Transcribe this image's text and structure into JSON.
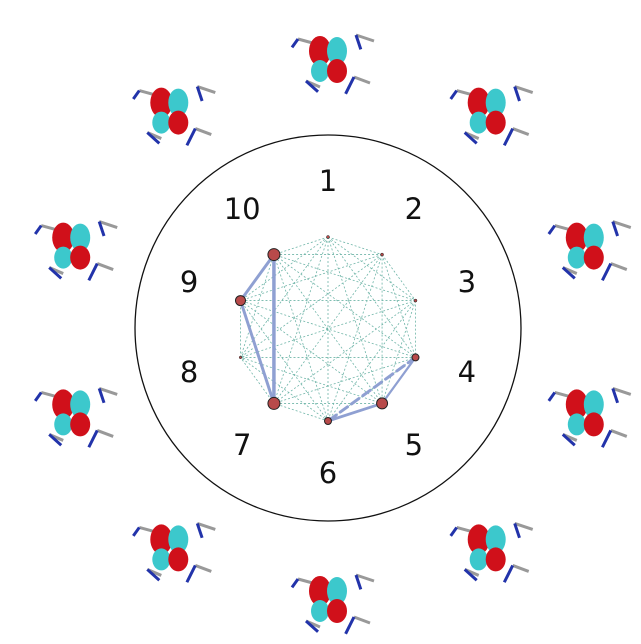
{
  "labels": [
    "1",
    "2",
    "3",
    "4",
    "5",
    "6",
    "7",
    "8",
    "9",
    "10"
  ]
}
